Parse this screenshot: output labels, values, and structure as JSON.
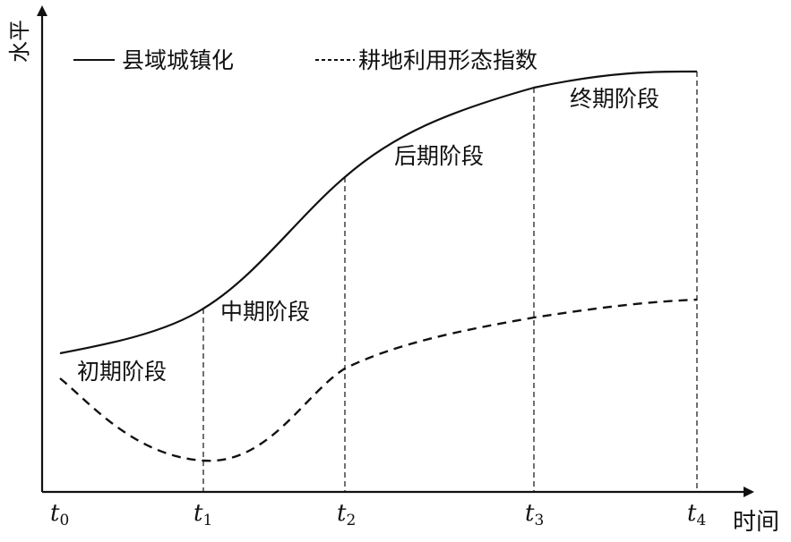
{
  "axes": {
    "y_label": "水平",
    "x_label": "时间"
  },
  "legend": {
    "solid_label": "县域城镇化",
    "dashed_label": "耕地利用形态指数"
  },
  "stages": [
    {
      "label": "初期阶段"
    },
    {
      "label": "中期阶段"
    },
    {
      "label": "后期阶段"
    },
    {
      "label": "终期阶段"
    }
  ],
  "ticks": [
    {
      "base": "t",
      "sub": "0"
    },
    {
      "base": "t",
      "sub": "1"
    },
    {
      "base": "t",
      "sub": "2"
    },
    {
      "base": "t",
      "sub": "3"
    },
    {
      "base": "t",
      "sub": "4"
    }
  ],
  "colors": {
    "line": "#111111",
    "background": "#ffffff"
  }
}
